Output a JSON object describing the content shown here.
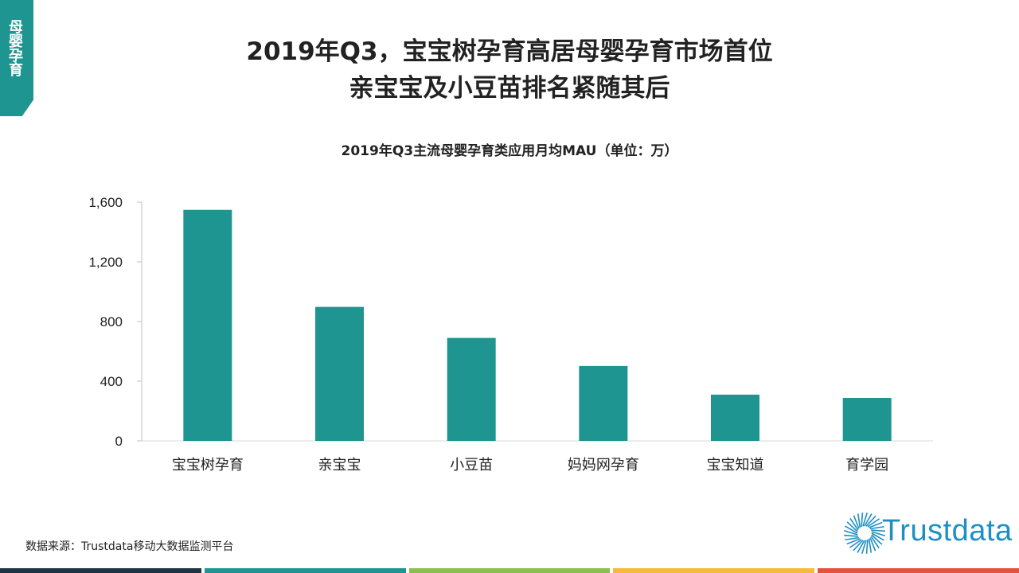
{
  "corner_tab": {
    "label": "母婴孕育",
    "color": "#1e9590"
  },
  "header": {
    "title_line1": "2019年Q3，宝宝树孕育高居母婴孕育市场首位",
    "title_line2": "亲宝宝及小豆苗排名紧随其后"
  },
  "chart_data": {
    "type": "bar",
    "title": "2019年Q3主流母婴孕育类应用月均MAU（单位：万）",
    "categories": [
      "宝宝树孕育",
      "亲宝宝",
      "小豆苗",
      "妈妈网孕育",
      "宝宝知道",
      "育学园"
    ],
    "values": [
      1548,
      898,
      690,
      502,
      310,
      288
    ],
    "ylim": [
      0,
      1600
    ],
    "yticks": [
      0,
      400,
      800,
      1200,
      1600
    ],
    "ytick_labels": [
      "0",
      "400",
      "800",
      "1,200",
      "1,600"
    ],
    "bar_color": "#1e9590",
    "grid": false
  },
  "footer": {
    "source": "数据来源：Trustdata移动大数据监测平台",
    "logo_text": "Trustdata",
    "logo_color": "#1e8fc4",
    "stripe_colors": [
      "#1f3441",
      "#1e9590",
      "#8bbf4f",
      "#f6b93b",
      "#e2523f"
    ]
  }
}
